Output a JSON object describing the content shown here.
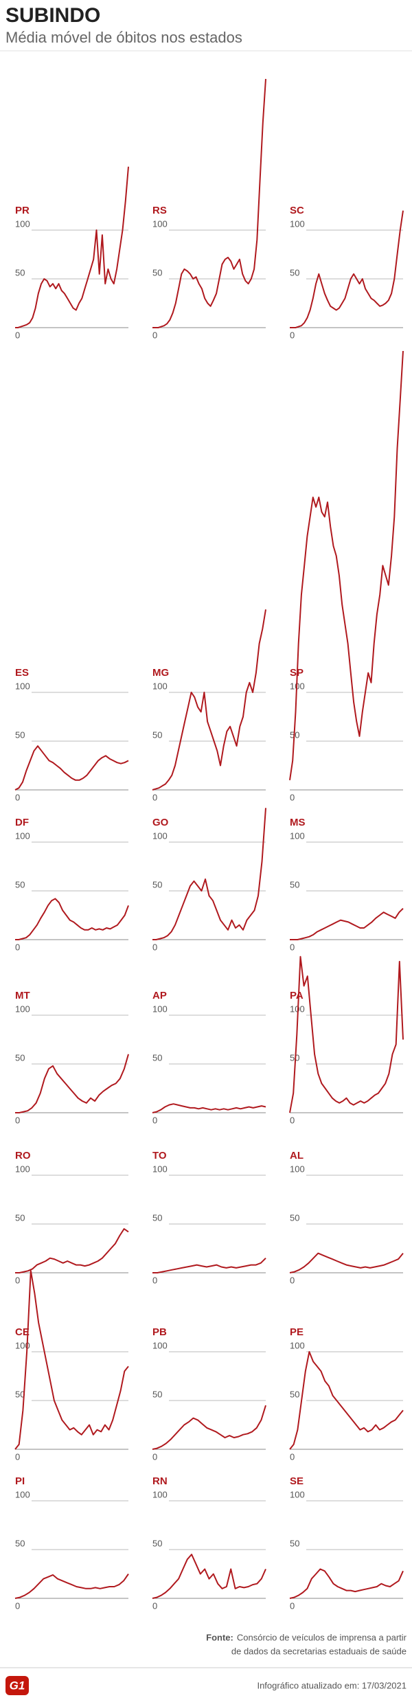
{
  "header": {
    "title": "SUBINDO",
    "subtitle": "Média móvel de óbitos nos estados"
  },
  "chart_data": [
    {
      "type": "line",
      "title": "PR",
      "color": "#b0191e",
      "ylim": [
        0,
        170
      ],
      "yticks": [
        0,
        50,
        100
      ],
      "grid": true,
      "values": [
        0,
        0,
        1,
        2,
        3,
        5,
        10,
        20,
        35,
        45,
        50,
        48,
        42,
        45,
        40,
        45,
        38,
        35,
        30,
        25,
        20,
        18,
        25,
        30,
        40,
        50,
        60,
        70,
        100,
        55,
        95,
        45,
        60,
        50,
        45,
        60,
        80,
        100,
        130,
        165
      ]
    },
    {
      "type": "line",
      "title": "RS",
      "color": "#b0191e",
      "ylim": [
        0,
        260
      ],
      "yticks": [
        0,
        50,
        100
      ],
      "grid": true,
      "values": [
        0,
        0,
        0,
        1,
        2,
        4,
        8,
        15,
        25,
        40,
        55,
        60,
        58,
        55,
        50,
        52,
        45,
        40,
        30,
        25,
        22,
        28,
        35,
        50,
        65,
        70,
        72,
        68,
        60,
        65,
        70,
        55,
        48,
        45,
        50,
        60,
        90,
        150,
        210,
        255
      ]
    },
    {
      "type": "line",
      "title": "SC",
      "color": "#b0191e",
      "ylim": [
        0,
        125
      ],
      "yticks": [
        0,
        50,
        100
      ],
      "grid": true,
      "values": [
        0,
        0,
        0,
        1,
        2,
        5,
        10,
        18,
        30,
        45,
        55,
        45,
        35,
        28,
        22,
        20,
        18,
        20,
        25,
        30,
        40,
        50,
        55,
        50,
        45,
        50,
        40,
        35,
        30,
        28,
        25,
        22,
        23,
        25,
        28,
        35,
        50,
        75,
        100,
        120
      ]
    },
    {
      "type": "line",
      "title": "ES",
      "color": "#b0191e",
      "ylim": [
        0,
        120
      ],
      "yticks": [
        0,
        50,
        100
      ],
      "grid": true,
      "values": [
        0,
        2,
        8,
        20,
        30,
        40,
        45,
        40,
        35,
        30,
        28,
        25,
        22,
        18,
        15,
        12,
        10,
        10,
        12,
        15,
        20,
        25,
        30,
        33,
        35,
        32,
        30,
        28,
        27,
        28,
        30
      ]
    },
    {
      "type": "line",
      "title": "MG",
      "color": "#b0191e",
      "ylim": [
        0,
        190
      ],
      "yticks": [
        0,
        50,
        100
      ],
      "grid": true,
      "values": [
        0,
        1,
        2,
        4,
        6,
        10,
        15,
        25,
        40,
        55,
        70,
        85,
        100,
        95,
        85,
        80,
        100,
        70,
        60,
        50,
        40,
        25,
        45,
        60,
        65,
        55,
        45,
        65,
        75,
        100,
        110,
        100,
        120,
        150,
        165,
        185
      ]
    },
    {
      "type": "line",
      "title": "SP",
      "color": "#b0191e",
      "ylim": [
        0,
        455
      ],
      "yticks": [
        0,
        50,
        100
      ],
      "grid": true,
      "values": [
        10,
        30,
        80,
        150,
        200,
        230,
        260,
        280,
        300,
        290,
        300,
        285,
        280,
        295,
        270,
        250,
        240,
        220,
        190,
        170,
        150,
        120,
        90,
        70,
        55,
        80,
        100,
        120,
        110,
        150,
        180,
        200,
        230,
        220,
        210,
        240,
        280,
        350,
        400,
        450
      ]
    },
    {
      "type": "line",
      "title": "DF",
      "color": "#b0191e",
      "ylim": [
        0,
        120
      ],
      "yticks": [
        0,
        50,
        100
      ],
      "grid": true,
      "values": [
        0,
        0,
        1,
        2,
        5,
        10,
        15,
        22,
        28,
        35,
        40,
        42,
        38,
        30,
        25,
        20,
        18,
        15,
        12,
        10,
        10,
        12,
        10,
        11,
        10,
        12,
        11,
        13,
        15,
        20,
        25,
        35
      ]
    },
    {
      "type": "line",
      "title": "GO",
      "color": "#b0191e",
      "ylim": [
        0,
        135
      ],
      "yticks": [
        0,
        50,
        100
      ],
      "grid": true,
      "values": [
        0,
        0,
        1,
        2,
        4,
        8,
        15,
        25,
        35,
        45,
        55,
        60,
        55,
        50,
        62,
        45,
        40,
        30,
        20,
        15,
        10,
        20,
        12,
        15,
        10,
        20,
        25,
        30,
        45,
        80,
        135
      ]
    },
    {
      "type": "line",
      "title": "MS",
      "color": "#b0191e",
      "ylim": [
        0,
        120
      ],
      "yticks": [
        0,
        50,
        100
      ],
      "grid": true,
      "values": [
        0,
        0,
        0,
        1,
        2,
        3,
        5,
        8,
        10,
        12,
        14,
        16,
        18,
        20,
        19,
        18,
        16,
        14,
        12,
        12,
        15,
        18,
        22,
        25,
        28,
        26,
        24,
        22,
        28,
        32
      ]
    },
    {
      "type": "line",
      "title": "MT",
      "color": "#b0191e",
      "ylim": [
        0,
        120
      ],
      "yticks": [
        0,
        50,
        100
      ],
      "grid": true,
      "values": [
        0,
        0,
        1,
        2,
        5,
        10,
        20,
        35,
        45,
        48,
        40,
        35,
        30,
        25,
        20,
        15,
        12,
        10,
        15,
        12,
        18,
        22,
        25,
        28,
        30,
        35,
        45,
        60
      ]
    },
    {
      "type": "line",
      "title": "AP",
      "color": "#b0191e",
      "ylim": [
        0,
        120
      ],
      "yticks": [
        0,
        50,
        100
      ],
      "grid": true,
      "values": [
        0,
        1,
        3,
        6,
        8,
        9,
        8,
        7,
        6,
        5,
        5,
        4,
        5,
        4,
        3,
        4,
        3,
        4,
        3,
        4,
        5,
        4,
        5,
        6,
        5,
        6,
        7,
        6
      ]
    },
    {
      "type": "line",
      "title": "PA",
      "color": "#b0191e",
      "ylim": [
        0,
        160
      ],
      "yticks": [
        0,
        50,
        100
      ],
      "grid": true,
      "values": [
        0,
        20,
        80,
        160,
        130,
        140,
        100,
        60,
        40,
        30,
        25,
        20,
        15,
        12,
        10,
        12,
        15,
        10,
        8,
        10,
        12,
        10,
        12,
        15,
        18,
        20,
        25,
        30,
        40,
        60,
        70,
        155,
        75
      ]
    },
    {
      "type": "line",
      "title": "RO",
      "color": "#b0191e",
      "ylim": [
        0,
        120
      ],
      "yticks": [
        0,
        50,
        100
      ],
      "grid": true,
      "values": [
        0,
        0,
        1,
        2,
        4,
        8,
        10,
        12,
        15,
        14,
        12,
        10,
        12,
        10,
        8,
        8,
        7,
        8,
        10,
        12,
        15,
        20,
        25,
        30,
        38,
        45,
        42
      ]
    },
    {
      "type": "line",
      "title": "TO",
      "color": "#b0191e",
      "ylim": [
        0,
        120
      ],
      "yticks": [
        0,
        50,
        100
      ],
      "grid": true,
      "values": [
        0,
        0,
        1,
        2,
        3,
        4,
        5,
        6,
        7,
        8,
        7,
        6,
        7,
        8,
        6,
        5,
        6,
        5,
        6,
        7,
        8,
        8,
        10,
        15
      ]
    },
    {
      "type": "line",
      "title": "AL",
      "color": "#b0191e",
      "ylim": [
        0,
        120
      ],
      "yticks": [
        0,
        50,
        100
      ],
      "grid": true,
      "values": [
        0,
        1,
        3,
        6,
        10,
        15,
        20,
        18,
        16,
        14,
        12,
        10,
        8,
        7,
        6,
        5,
        6,
        5,
        6,
        7,
        8,
        10,
        12,
        14,
        20
      ]
    },
    {
      "type": "line",
      "title": "CE",
      "color": "#b0191e",
      "ylim": [
        0,
        185
      ],
      "yticks": [
        0,
        50,
        100
      ],
      "grid": true,
      "values": [
        0,
        5,
        40,
        100,
        183,
        160,
        130,
        110,
        90,
        70,
        50,
        40,
        30,
        25,
        20,
        22,
        18,
        15,
        20,
        25,
        15,
        20,
        18,
        25,
        20,
        30,
        45,
        60,
        80,
        85
      ]
    },
    {
      "type": "line",
      "title": "PB",
      "color": "#b0191e",
      "ylim": [
        0,
        120
      ],
      "yticks": [
        0,
        50,
        100
      ],
      "grid": true,
      "values": [
        0,
        1,
        3,
        6,
        10,
        15,
        20,
        25,
        28,
        32,
        30,
        26,
        22,
        20,
        18,
        15,
        12,
        14,
        12,
        13,
        15,
        16,
        18,
        22,
        30,
        45
      ]
    },
    {
      "type": "line",
      "title": "PE",
      "color": "#b0191e",
      "ylim": [
        0,
        120
      ],
      "yticks": [
        0,
        50,
        100
      ],
      "grid": true,
      "values": [
        0,
        5,
        20,
        50,
        80,
        100,
        90,
        85,
        80,
        70,
        65,
        55,
        50,
        45,
        40,
        35,
        30,
        25,
        20,
        22,
        18,
        20,
        25,
        20,
        22,
        25,
        28,
        30,
        35,
        40
      ]
    },
    {
      "type": "line",
      "title": "PI",
      "color": "#b0191e",
      "ylim": [
        0,
        120
      ],
      "yticks": [
        0,
        50,
        100
      ],
      "grid": true,
      "values": [
        0,
        1,
        3,
        6,
        10,
        15,
        20,
        22,
        24,
        20,
        18,
        16,
        14,
        12,
        11,
        10,
        10,
        11,
        10,
        11,
        12,
        12,
        14,
        18,
        25
      ]
    },
    {
      "type": "line",
      "title": "RN",
      "color": "#b0191e",
      "ylim": [
        0,
        120
      ],
      "yticks": [
        0,
        50,
        100
      ],
      "grid": true,
      "values": [
        0,
        1,
        3,
        6,
        10,
        15,
        20,
        30,
        40,
        45,
        35,
        25,
        30,
        20,
        25,
        15,
        10,
        12,
        30,
        10,
        12,
        11,
        12,
        14,
        15,
        20,
        30
      ]
    },
    {
      "type": "line",
      "title": "SE",
      "color": "#b0191e",
      "ylim": [
        0,
        120
      ],
      "yticks": [
        0,
        50,
        100
      ],
      "grid": true,
      "values": [
        0,
        1,
        3,
        6,
        10,
        20,
        25,
        30,
        28,
        22,
        15,
        12,
        10,
        8,
        8,
        7,
        8,
        9,
        10,
        11,
        12,
        15,
        13,
        12,
        15,
        18,
        28
      ]
    }
  ],
  "footer": {
    "source_label": "Fonte:",
    "source_lines": [
      "Consórcio de veículos de imprensa a partir",
      "de dados da secretarias estaduais de saúde"
    ],
    "logo": "G1",
    "updated": "Infográfico atualizado em: 17/03/2021"
  }
}
